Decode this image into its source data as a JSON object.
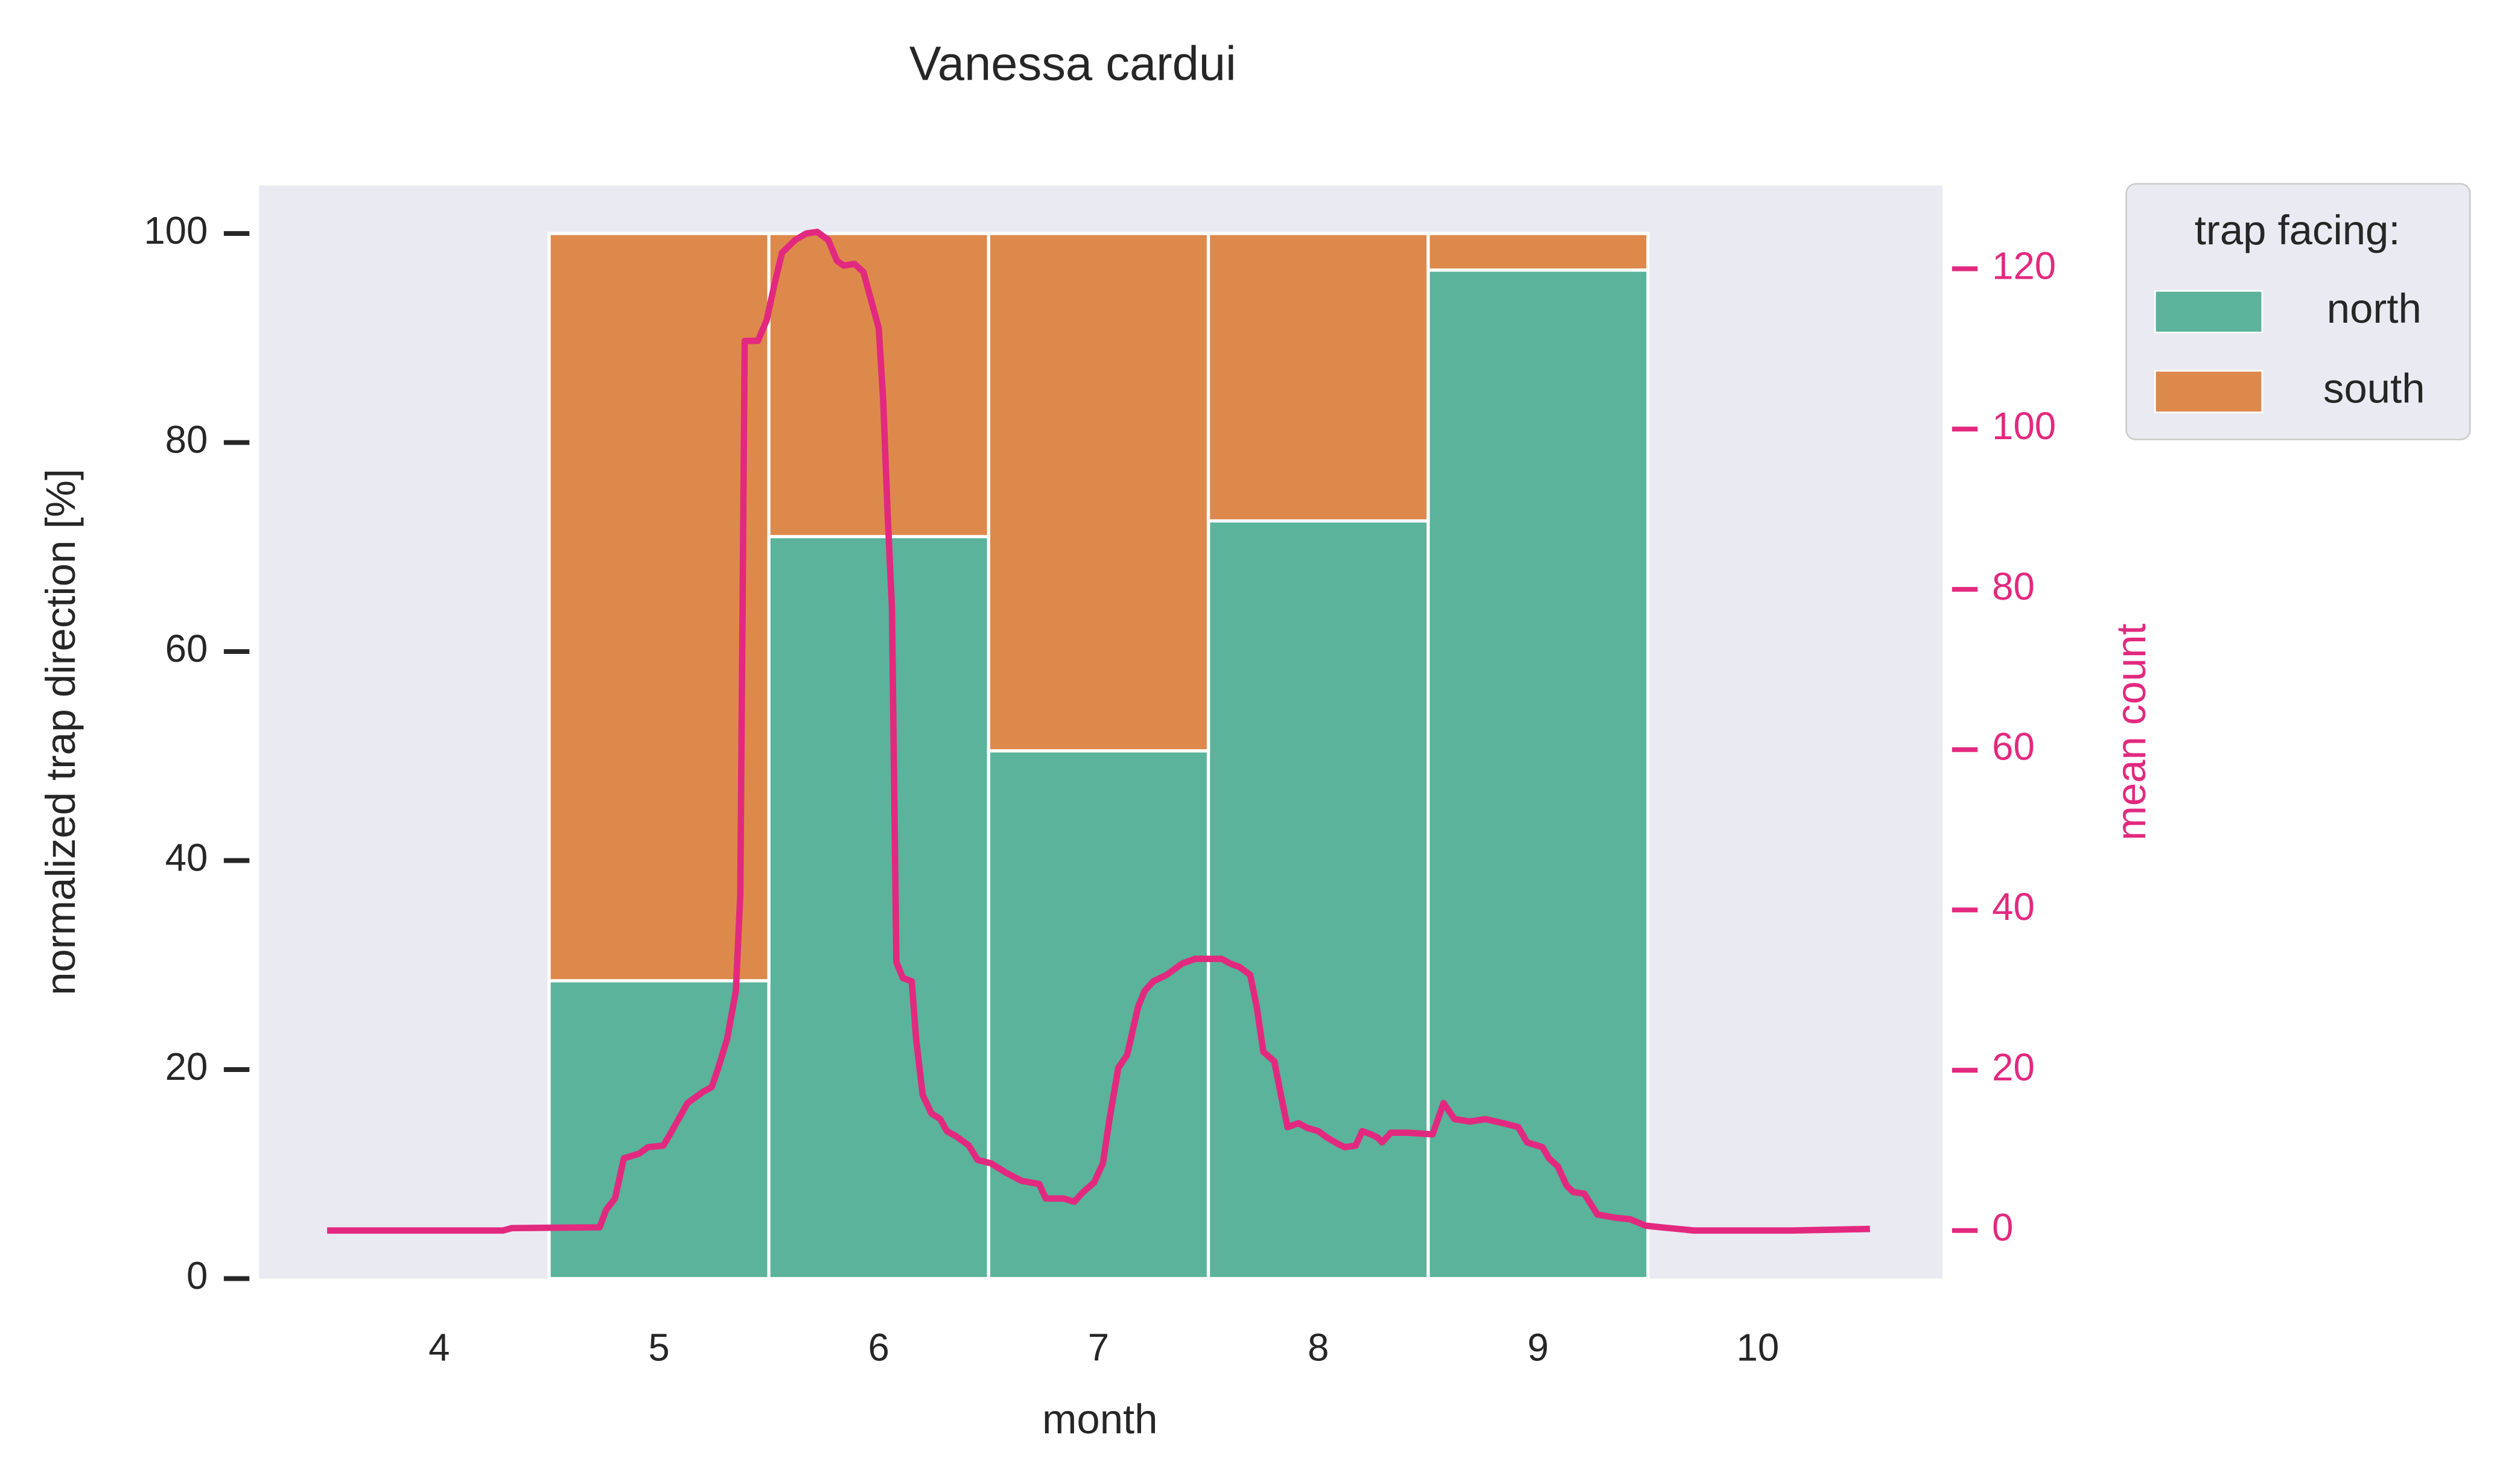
{
  "chart_data": {
    "type": "bar",
    "stacked": true,
    "title": "Vanessa cardui",
    "xlabel": "month",
    "ylabel": "normalized trap direction [%]",
    "y2label": "mean count",
    "y2color": "#e2297f",
    "categories": [
      4,
      5,
      6,
      7,
      8,
      9,
      10
    ],
    "series": [
      {
        "name": "north",
        "color": "#5ab39a",
        "values": [
          null,
          28.5,
          71,
          50.5,
          72.5,
          96.5,
          null
        ]
      },
      {
        "name": "south",
        "color": "#dd894b",
        "values": [
          null,
          71.5,
          29,
          49.5,
          27.5,
          3.5,
          null
        ]
      },
      {
        "type": "line",
        "axis": "y2",
        "color": "#e2297f",
        "x": [
          3.49,
          4.29,
          4.33,
          4.73,
          4.76,
          4.8,
          4.84,
          4.91,
          4.95,
          5.02,
          5.05,
          5.13,
          5.2,
          5.24,
          5.27,
          5.31,
          5.35,
          5.37,
          5.39,
          5.45,
          5.49,
          5.53,
          5.56,
          5.62,
          5.67,
          5.72,
          5.77,
          5.81,
          5.84,
          5.89,
          5.93,
          5.96,
          6.0,
          6.02,
          6.04,
          6.06,
          6.08,
          6.11,
          6.15,
          6.17,
          6.2,
          6.24,
          6.28,
          6.31,
          6.35,
          6.41,
          6.45,
          6.51,
          6.58,
          6.65,
          6.73,
          6.76,
          6.84,
          6.89,
          6.93,
          6.98,
          7.02,
          7.05,
          7.09,
          7.13,
          7.18,
          7.21,
          7.25,
          7.31,
          7.38,
          7.44,
          7.49,
          7.56,
          7.6,
          7.64,
          7.69,
          7.72,
          7.75,
          7.8,
          7.83,
          7.86,
          7.91,
          7.95,
          8.0,
          8.04,
          8.09,
          8.12,
          8.17,
          8.2,
          8.24,
          8.27,
          8.29,
          8.33,
          8.41,
          8.52,
          8.57,
          8.62,
          8.69,
          8.76,
          8.84,
          8.91,
          8.95,
          9.02,
          9.05,
          9.09,
          9.13,
          9.16,
          9.21,
          9.27,
          9.35,
          9.42,
          9.49,
          9.56,
          9.71,
          10.15,
          10.51
        ],
        "values": [
          0,
          0,
          0.3,
          0.4,
          2.6,
          4.0,
          9.0,
          9.6,
          10.4,
          10.6,
          12.0,
          15.9,
          17.3,
          17.9,
          20.3,
          23.9,
          29.9,
          41.9,
          111.0,
          111.0,
          113.6,
          118.6,
          122.0,
          123.6,
          124.4,
          124.6,
          123.6,
          121.0,
          120.4,
          120.6,
          119.6,
          116.6,
          112.6,
          103.7,
          89.7,
          77.7,
          33.5,
          31.5,
          31.1,
          23.9,
          16.9,
          14.6,
          13.9,
          12.4,
          11.8,
          10.6,
          8.8,
          8.4,
          7.2,
          6.2,
          5.8,
          4.0,
          4.0,
          3.6,
          4.8,
          6.0,
          8.4,
          13.9,
          20.3,
          21.9,
          27.9,
          29.9,
          31.1,
          31.9,
          33.3,
          33.9,
          33.9,
          33.9,
          33.3,
          32.9,
          31.9,
          27.9,
          22.3,
          21.1,
          16.9,
          12.9,
          13.4,
          12.8,
          12.4,
          11.6,
          10.8,
          10.4,
          10.6,
          12.4,
          12.0,
          11.6,
          11.0,
          12.2,
          12.2,
          12.0,
          15.9,
          13.9,
          13.6,
          13.9,
          13.4,
          12.9,
          11.0,
          10.4,
          9.0,
          8.0,
          5.6,
          4.8,
          4.6,
          2.0,
          1.6,
          1.4,
          0.6,
          0.4,
          0,
          0,
          0.2
        ]
      }
    ],
    "xlim": [
      3.18,
      10.84
    ],
    "ylim": [
      0,
      104.6
    ],
    "yticks": [
      0,
      20,
      40,
      60,
      80,
      100
    ],
    "y2lim": [
      -6,
      130.4
    ],
    "y2ticks": [
      0,
      20,
      40,
      60,
      80,
      100,
      120
    ],
    "grid": false,
    "legend_title": "trap facing:",
    "legend": "outside-upper-right"
  }
}
